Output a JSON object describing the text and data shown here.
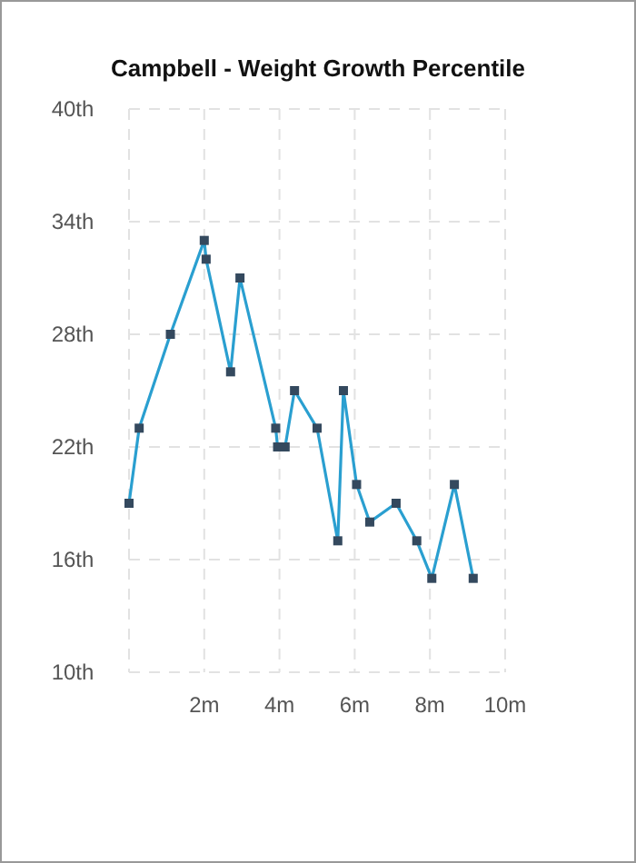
{
  "chart_data": {
    "type": "line",
    "title": "Campbell - Weight Growth Percentile",
    "x": [
      0,
      0.27,
      1.1,
      2.0,
      2.05,
      2.7,
      2.95,
      3.9,
      3.95,
      4.15,
      4.4,
      5.0,
      5.55,
      5.7,
      6.05,
      6.4,
      7.1,
      7.65,
      8.05,
      8.65,
      9.15
    ],
    "series": [
      {
        "color": "#2a9fd0",
        "values": [
          19,
          23,
          28,
          33,
          32,
          26,
          31,
          23,
          22,
          22,
          25,
          23,
          17,
          25,
          20,
          18,
          19,
          17,
          15,
          20,
          15
        ]
      }
    ],
    "xlim": [
      0,
      10
    ],
    "xticks": [
      {
        "value": 0,
        "label": null
      },
      {
        "value": 2,
        "label": "2m"
      },
      {
        "value": 4,
        "label": "4m"
      },
      {
        "value": 6,
        "label": "6m"
      },
      {
        "value": 8,
        "label": "8m"
      },
      {
        "value": 10,
        "label": "10m"
      }
    ],
    "ylim": [
      10,
      40
    ],
    "yticks": [
      {
        "value": 10,
        "label": "10th"
      },
      {
        "value": 16,
        "label": "16th"
      },
      {
        "value": 22,
        "label": "22th"
      },
      {
        "value": 28,
        "label": "28th"
      },
      {
        "value": 34,
        "label": "34th"
      },
      {
        "value": 40,
        "label": "40th"
      }
    ],
    "grid": true,
    "marker": "square",
    "line_style": "solid"
  }
}
